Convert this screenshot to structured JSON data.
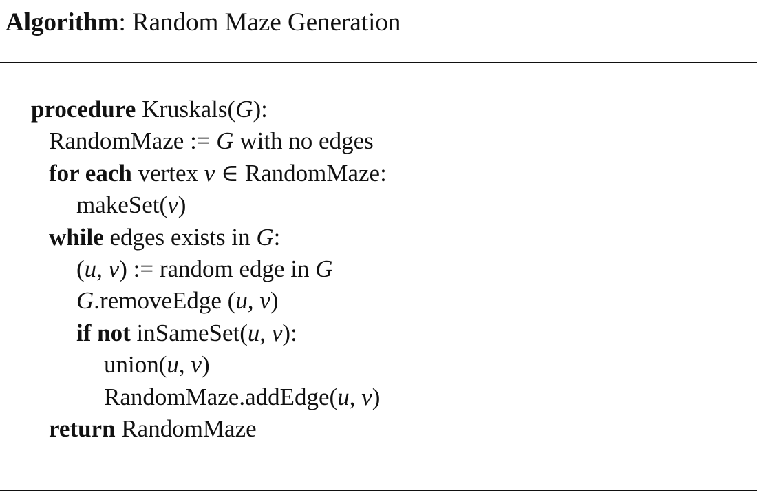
{
  "caption": {
    "label": "Algorithm",
    "separator": ":",
    "title": " Random Maze Generation"
  },
  "algorithm": {
    "lines": [
      {
        "indent": 0,
        "tokens": [
          {
            "t": "procedure",
            "s": "kw"
          },
          {
            "t": " Kruskals(",
            "s": ""
          },
          {
            "t": "G",
            "s": "it"
          },
          {
            "t": "):",
            "s": ""
          }
        ]
      },
      {
        "indent": 1,
        "tokens": [
          {
            "t": "RandomMaze := ",
            "s": ""
          },
          {
            "t": "G",
            "s": "it"
          },
          {
            "t": " with no edges",
            "s": ""
          }
        ]
      },
      {
        "indent": 1,
        "tokens": [
          {
            "t": "for each",
            "s": "kw"
          },
          {
            "t": " vertex ",
            "s": ""
          },
          {
            "t": "v",
            "s": "it"
          },
          {
            "t": " ∈ RandomMaze:",
            "s": ""
          }
        ]
      },
      {
        "indent": 2,
        "tokens": [
          {
            "t": "makeSet(",
            "s": ""
          },
          {
            "t": "v",
            "s": "it"
          },
          {
            "t": ")",
            "s": ""
          }
        ]
      },
      {
        "indent": 1,
        "tokens": [
          {
            "t": "while",
            "s": "kw"
          },
          {
            "t": " edges exists in ",
            "s": ""
          },
          {
            "t": "G",
            "s": "it"
          },
          {
            "t": ":",
            "s": ""
          }
        ]
      },
      {
        "indent": 2,
        "tokens": [
          {
            "t": "(",
            "s": ""
          },
          {
            "t": "u",
            "s": "it"
          },
          {
            "t": ", ",
            "s": ""
          },
          {
            "t": "v",
            "s": "it"
          },
          {
            "t": ") := random edge in ",
            "s": ""
          },
          {
            "t": "G",
            "s": "it"
          }
        ]
      },
      {
        "indent": 2,
        "tokens": [
          {
            "t": "G",
            "s": "it"
          },
          {
            "t": ".removeEdge (",
            "s": ""
          },
          {
            "t": "u",
            "s": "it"
          },
          {
            "t": ", ",
            "s": ""
          },
          {
            "t": "v",
            "s": "it"
          },
          {
            "t": ")",
            "s": ""
          }
        ]
      },
      {
        "indent": 2,
        "tokens": [
          {
            "t": "if not",
            "s": "kw"
          },
          {
            "t": " inSameSet(",
            "s": ""
          },
          {
            "t": "u",
            "s": "it"
          },
          {
            "t": ", ",
            "s": ""
          },
          {
            "t": "v",
            "s": "it"
          },
          {
            "t": "):",
            "s": ""
          }
        ]
      },
      {
        "indent": 3,
        "tokens": [
          {
            "t": "union(",
            "s": ""
          },
          {
            "t": "u",
            "s": "it"
          },
          {
            "t": ", ",
            "s": ""
          },
          {
            "t": "v",
            "s": "it"
          },
          {
            "t": ")",
            "s": ""
          }
        ]
      },
      {
        "indent": 3,
        "tokens": [
          {
            "t": "RandomMaze.addEdge(",
            "s": ""
          },
          {
            "t": "u",
            "s": "it"
          },
          {
            "t": ", ",
            "s": ""
          },
          {
            "t": "v",
            "s": "it"
          },
          {
            "t": ")",
            "s": ""
          }
        ]
      },
      {
        "indent": 1,
        "tokens": [
          {
            "t": "return",
            "s": "kw"
          },
          {
            "t": " RandomMaze",
            "s": ""
          }
        ]
      }
    ]
  }
}
